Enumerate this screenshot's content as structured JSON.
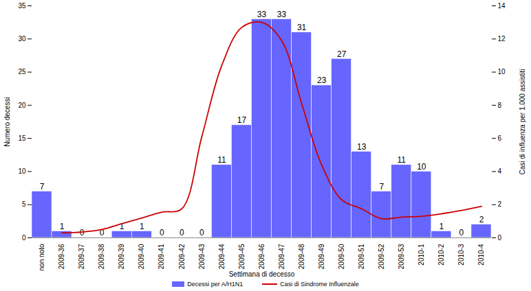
{
  "chart_data": {
    "type": "bar",
    "x_label": "Settimana di decesso",
    "y_label": "Numero decessi",
    "y2_label": "Casi di influenza per 1.000 assistiti",
    "categories": [
      "non noto",
      "2009-36",
      "2009-37",
      "2009-38",
      "2009-39",
      "2009-40",
      "2009-41",
      "2009-42",
      "2009-43",
      "2009-44",
      "2009-45",
      "2009-46",
      "2009-47",
      "2009-48",
      "2009-49",
      "2009-50",
      "2009-51",
      "2009-52",
      "2009-53",
      "2010-1",
      "2010-2",
      "2010-3",
      "2010-4"
    ],
    "series": [
      {
        "name": "Decessi per A/H1N1",
        "type": "bar",
        "color": "#6666ff",
        "values": [
          7,
          1,
          0,
          0,
          1,
          1,
          0,
          0,
          0,
          11,
          17,
          33,
          33,
          31,
          23,
          27,
          13,
          7,
          11,
          10,
          1,
          0,
          2
        ]
      },
      {
        "name": "Casi di Sindrome Influenzale",
        "type": "line",
        "axis": "y2",
        "color": "#cc0000",
        "values": [
          null,
          0.3,
          0.35,
          0.5,
          0.85,
          1.2,
          1.55,
          1.75,
          6.1,
          10.4,
          12.7,
          13.0,
          11.9,
          8.1,
          4.4,
          2.3,
          1.75,
          1.15,
          1.25,
          1.3,
          1.45,
          1.65,
          1.9
        ]
      }
    ],
    "ylim": [
      0,
      35
    ],
    "yticks": [
      0,
      5,
      10,
      15,
      20,
      25,
      30,
      35
    ],
    "y2lim": [
      0,
      14
    ],
    "y2ticks": [
      0,
      2,
      4,
      6,
      8,
      10,
      12,
      14
    ],
    "data_labels": true,
    "legend": "bottom",
    "grid": false
  }
}
